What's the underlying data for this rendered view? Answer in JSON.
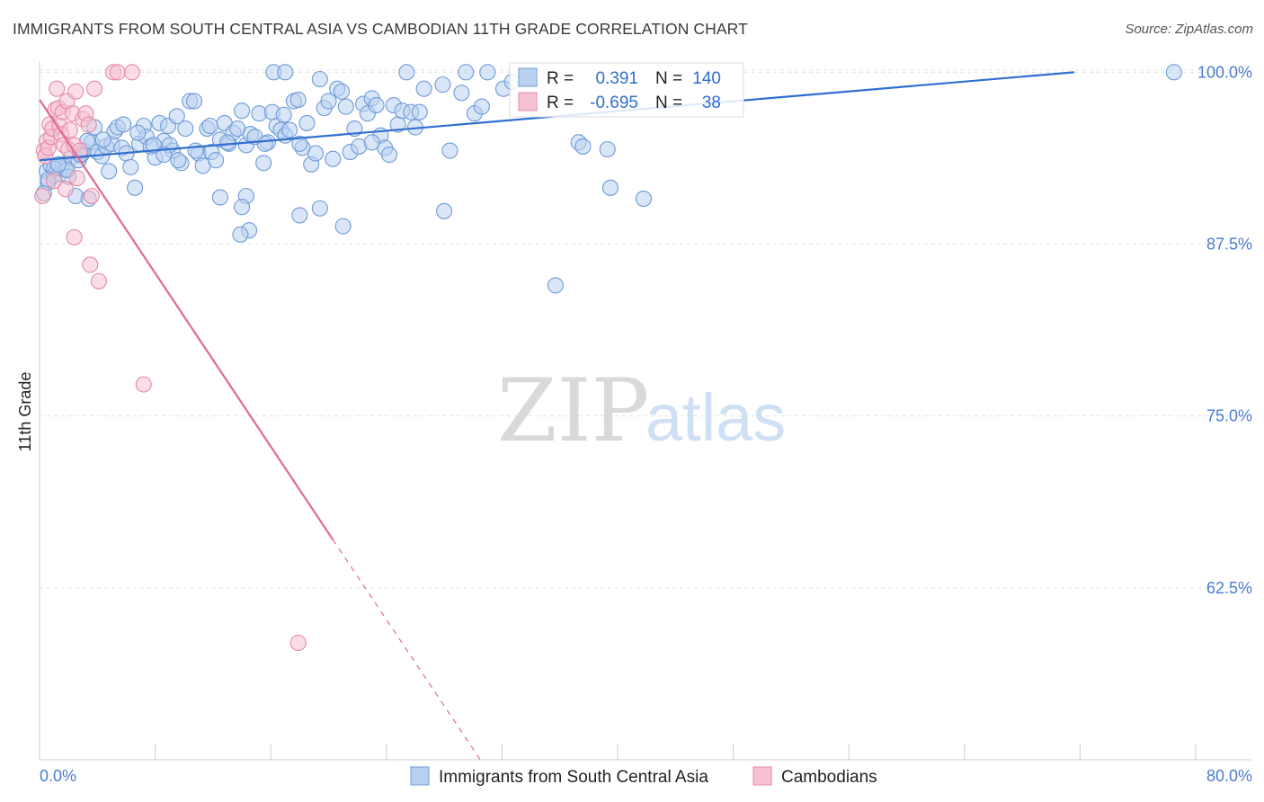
{
  "header": {
    "title": "IMMIGRANTS FROM SOUTH CENTRAL ASIA VS CAMBODIAN 11TH GRADE CORRELATION CHART",
    "source": "Source: ZipAtlas.com"
  },
  "watermark": {
    "zip": "ZIP",
    "atlas": "atlas"
  },
  "colors": {
    "blue_fill": "#b9d1f1",
    "blue_stroke": "#6f9ad8",
    "blue_line": "#2f6fd0",
    "pink_fill": "#f6c1d2",
    "pink_stroke": "#e58aa8",
    "pink_line": "#e06a93",
    "tick_text": "#4a7bd0",
    "grid": "#e3e3e3"
  },
  "legend_top": {
    "rows": [
      {
        "r_label": "R =",
        "r_value": "0.391",
        "n_label": "N =",
        "n_value": "140"
      },
      {
        "r_label": "R =",
        "r_value": "-0.695",
        "n_label": "N =",
        "n_value": "38"
      }
    ]
  },
  "legend_bottom": {
    "items": [
      "Immigrants from South Central Asia",
      "Cambodians"
    ]
  },
  "chart_data": {
    "type": "scatter",
    "title": "IMMIGRANTS FROM SOUTH CENTRAL ASIA VS CAMBODIAN 11TH GRADE CORRELATION CHART",
    "xlabel": "",
    "ylabel": "11th Grade",
    "xlim": [
      0,
      80
    ],
    "ylim": [
      50,
      101.2
    ],
    "x_tick_labels": [
      "0.0%",
      "80.0%"
    ],
    "y_ticks": [
      62.5,
      75.0,
      87.5,
      100.0
    ],
    "y_tick_labels": [
      "62.5%",
      "75.0%",
      "87.5%",
      "100.0%"
    ],
    "grid": true,
    "legend_position": "top-center",
    "series": [
      {
        "name": "Immigrants from South Central Asia",
        "color": "#6f9ad8",
        "r": 0.391,
        "n": 140,
        "trend": {
          "x": [
            0,
            71.6
          ],
          "y": [
            93.6,
            100
          ]
        },
        "points": [
          [
            0.3,
            91.2
          ],
          [
            0.5,
            92.8
          ],
          [
            0.6,
            92.0
          ],
          [
            0.8,
            93.2
          ],
          [
            1.0,
            92.5
          ],
          [
            1.2,
            93.0
          ],
          [
            1.4,
            92.6
          ],
          [
            1.6,
            93.3
          ],
          [
            1.8,
            93.1
          ],
          [
            2.0,
            92.4
          ],
          [
            2.2,
            93.8
          ],
          [
            2.5,
            91.0
          ],
          [
            2.7,
            93.6
          ],
          [
            2.9,
            94.0
          ],
          [
            3.1,
            94.3
          ],
          [
            3.4,
            90.8
          ],
          [
            3.6,
            94.9
          ],
          [
            3.8,
            96.0
          ],
          [
            4.0,
            94.2
          ],
          [
            4.3,
            93.9
          ],
          [
            4.6,
            94.6
          ],
          [
            4.8,
            92.8
          ],
          [
            5.0,
            94.8
          ],
          [
            5.2,
            95.7
          ],
          [
            5.4,
            96.0
          ],
          [
            5.7,
            94.5
          ],
          [
            6.0,
            94.1
          ],
          [
            6.3,
            93.1
          ],
          [
            6.6,
            91.6
          ],
          [
            6.9,
            94.8
          ],
          [
            7.2,
            96.1
          ],
          [
            7.4,
            95.3
          ],
          [
            7.7,
            94.6
          ],
          [
            8.0,
            93.8
          ],
          [
            8.3,
            96.3
          ],
          [
            8.6,
            95.0
          ],
          [
            8.9,
            96.1
          ],
          [
            9.2,
            94.3
          ],
          [
            9.5,
            96.8
          ],
          [
            9.8,
            93.4
          ],
          [
            10.1,
            95.9
          ],
          [
            10.4,
            97.9
          ],
          [
            10.7,
            97.9
          ],
          [
            11.0,
            94.1
          ],
          [
            11.3,
            93.2
          ],
          [
            11.6,
            95.9
          ],
          [
            11.9,
            94.2
          ],
          [
            12.2,
            93.6
          ],
          [
            12.5,
            95.1
          ],
          [
            12.8,
            96.3
          ],
          [
            13.1,
            94.8
          ],
          [
            13.4,
            95.6
          ],
          [
            13.7,
            95.9
          ],
          [
            14.0,
            97.2
          ],
          [
            14.3,
            94.7
          ],
          [
            14.6,
            95.5
          ],
          [
            14.9,
            95.3
          ],
          [
            15.2,
            97.0
          ],
          [
            15.5,
            93.4
          ],
          [
            15.8,
            94.9
          ],
          [
            16.1,
            97.1
          ],
          [
            16.4,
            96.1
          ],
          [
            16.7,
            95.8
          ],
          [
            17.0,
            95.4
          ],
          [
            17.3,
            95.8
          ],
          [
            17.6,
            97.9
          ],
          [
            17.9,
            98.0
          ],
          [
            18.2,
            94.5
          ],
          [
            18.5,
            96.3
          ],
          [
            18.8,
            93.3
          ],
          [
            19.1,
            94.1
          ],
          [
            19.4,
            99.5
          ],
          [
            19.7,
            97.4
          ],
          [
            20.0,
            97.9
          ],
          [
            20.3,
            93.7
          ],
          [
            20.6,
            98.8
          ],
          [
            20.9,
            98.6
          ],
          [
            21.2,
            97.5
          ],
          [
            21.5,
            94.2
          ],
          [
            21.8,
            95.9
          ],
          [
            22.1,
            94.6
          ],
          [
            22.4,
            97.7
          ],
          [
            22.7,
            97.0
          ],
          [
            23.0,
            98.1
          ],
          [
            23.3,
            97.6
          ],
          [
            23.6,
            95.4
          ],
          [
            23.9,
            94.5
          ],
          [
            24.2,
            94.0
          ],
          [
            24.5,
            97.6
          ],
          [
            24.8,
            96.2
          ],
          [
            25.1,
            97.2
          ],
          [
            25.4,
            100.0
          ],
          [
            25.7,
            97.1
          ],
          [
            26.0,
            96.0
          ],
          [
            26.3,
            97.1
          ],
          [
            26.6,
            98.8
          ],
          [
            27.9,
            99.1
          ],
          [
            28.4,
            94.3
          ],
          [
            29.2,
            98.5
          ],
          [
            29.5,
            100.0
          ],
          [
            30.1,
            97.0
          ],
          [
            30.6,
            97.5
          ],
          [
            31.0,
            100.0
          ],
          [
            32.1,
            98.8
          ],
          [
            32.7,
            99.3
          ],
          [
            16.2,
            100.0
          ],
          [
            17.0,
            100.0
          ],
          [
            19.4,
            90.1
          ],
          [
            14.3,
            91.0
          ],
          [
            12.5,
            90.9
          ],
          [
            14.0,
            90.2
          ],
          [
            14.5,
            88.5
          ],
          [
            13.9,
            88.2
          ],
          [
            18.0,
            89.6
          ],
          [
            21.0,
            88.8
          ],
          [
            28.0,
            89.9
          ],
          [
            35.7,
            84.5
          ],
          [
            37.3,
            94.9
          ],
          [
            37.6,
            94.6
          ],
          [
            39.3,
            94.4
          ],
          [
            39.5,
            91.6
          ],
          [
            41.8,
            90.8
          ],
          [
            78.5,
            100.0
          ],
          [
            7.9,
            94.7
          ],
          [
            9.0,
            94.7
          ],
          [
            10.8,
            94.3
          ],
          [
            13.0,
            94.9
          ],
          [
            15.6,
            94.8
          ],
          [
            16.9,
            96.9
          ],
          [
            18.0,
            94.8
          ],
          [
            3.3,
            95.0
          ],
          [
            4.4,
            95.1
          ],
          [
            5.8,
            96.2
          ],
          [
            6.8,
            95.6
          ],
          [
            8.6,
            94.0
          ],
          [
            9.6,
            93.6
          ],
          [
            11.8,
            96.1
          ],
          [
            23.0,
            94.9
          ],
          [
            1.0,
            93.0
          ],
          [
            1.9,
            92.9
          ],
          [
            0.6,
            92.2
          ],
          [
            1.3,
            93.3
          ],
          [
            2.8,
            94.0
          ]
        ]
      },
      {
        "name": "Cambodians",
        "color": "#e58aa8",
        "r": -0.695,
        "n": 38,
        "trend": {
          "x": [
            0,
            20.3
          ],
          "y": [
            98.0,
            66.0
          ]
        },
        "trend_dashed": {
          "x": [
            20.3,
            30.5
          ],
          "y": [
            66.0,
            50.0
          ]
        },
        "points": [
          [
            0.2,
            91.0
          ],
          [
            0.3,
            94.3
          ],
          [
            0.4,
            93.9
          ],
          [
            0.5,
            95.0
          ],
          [
            0.6,
            94.5
          ],
          [
            0.7,
            96.2
          ],
          [
            0.8,
            95.3
          ],
          [
            0.9,
            95.9
          ],
          [
            1.0,
            92.1
          ],
          [
            1.1,
            97.3
          ],
          [
            1.2,
            98.8
          ],
          [
            1.3,
            97.4
          ],
          [
            1.4,
            96.1
          ],
          [
            1.5,
            95.5
          ],
          [
            1.6,
            97.1
          ],
          [
            1.7,
            94.7
          ],
          [
            1.8,
            91.5
          ],
          [
            1.9,
            97.9
          ],
          [
            2.0,
            94.4
          ],
          [
            2.1,
            95.8
          ],
          [
            2.3,
            97.0
          ],
          [
            2.4,
            94.7
          ],
          [
            2.5,
            98.6
          ],
          [
            2.6,
            92.3
          ],
          [
            2.8,
            94.3
          ],
          [
            3.0,
            96.6
          ],
          [
            3.2,
            97.0
          ],
          [
            3.4,
            96.2
          ],
          [
            3.6,
            91.0
          ],
          [
            3.8,
            98.8
          ],
          [
            5.1,
            100.0
          ],
          [
            5.4,
            100.0
          ],
          [
            6.4,
            100.0
          ],
          [
            2.4,
            88.0
          ],
          [
            3.5,
            86.0
          ],
          [
            4.1,
            84.8
          ],
          [
            7.2,
            77.3
          ],
          [
            17.9,
            58.5
          ]
        ]
      }
    ]
  }
}
